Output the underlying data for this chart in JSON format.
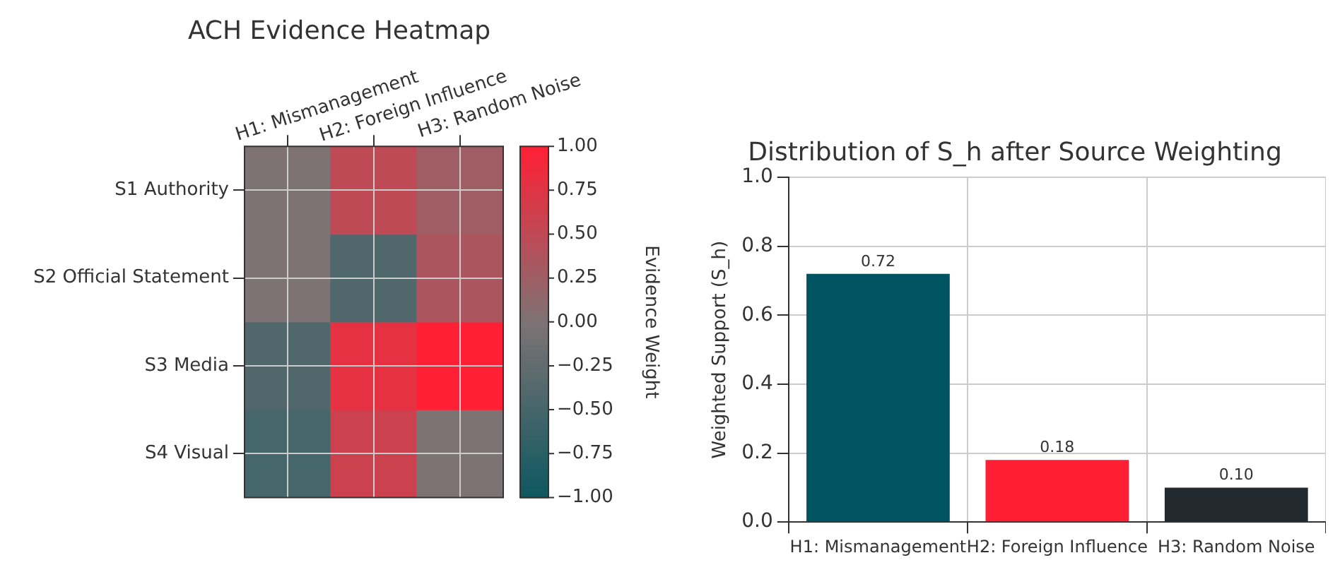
{
  "chart_data": [
    {
      "type": "heatmap",
      "title": "ACH Evidence Heatmap",
      "categories": [
        "H1: Mismanagement",
        "H2: Foreign Influence",
        "H3: Random Noise"
      ],
      "y_categories": [
        "S1 Authority",
        "S2 Official Statement",
        "S3 Media",
        "S4 Visual"
      ],
      "cells": [
        [
          0,
          0.5,
          0.25
        ],
        [
          0,
          -0.4,
          0.35
        ],
        [
          -0.4,
          0.8,
          1.0
        ],
        [
          -0.5,
          0.6,
          0
        ]
      ],
      "clim": [
        -1,
        1
      ],
      "cticks": [
        {
          "value": 1,
          "label": "1.00"
        },
        {
          "value": 0.75,
          "label": "0.75"
        },
        {
          "value": 0.5,
          "label": "0.50"
        },
        {
          "value": 0.25,
          "label": "0.25"
        },
        {
          "value": 0,
          "label": "0.00"
        },
        {
          "value": -0.25,
          "label": "−0.25"
        },
        {
          "value": -0.5,
          "label": "−0.50"
        },
        {
          "value": -0.75,
          "label": "−0.75"
        },
        {
          "value": -1,
          "label": "−1.00"
        }
      ],
      "clabel": "Evidence Weight",
      "grid": true
    },
    {
      "type": "bar",
      "title": "Distribution of S_h after Source Weighting",
      "ylabel": "Weighted Support (S_h)",
      "categories": [
        "H1: Mismanagement",
        "H2: Foreign Influence",
        "H3: Random Noise"
      ],
      "values": [
        0.72,
        0.18,
        0.1
      ],
      "colors": [
        "#005360",
        "#ff1f35",
        "#22292f"
      ],
      "value_labels": [
        "0.72",
        "0.18",
        "0.10"
      ],
      "ylim": [
        0,
        1
      ],
      "yticks": [
        {
          "value": 0,
          "label": "0.0"
        },
        {
          "value": 0.2,
          "label": "0.2"
        },
        {
          "value": 0.4,
          "label": "0.4"
        },
        {
          "value": 0.6,
          "label": "0.6"
        },
        {
          "value": 0.8,
          "label": "0.8"
        },
        {
          "value": 1,
          "label": "1.0"
        }
      ],
      "grid": true
    }
  ]
}
